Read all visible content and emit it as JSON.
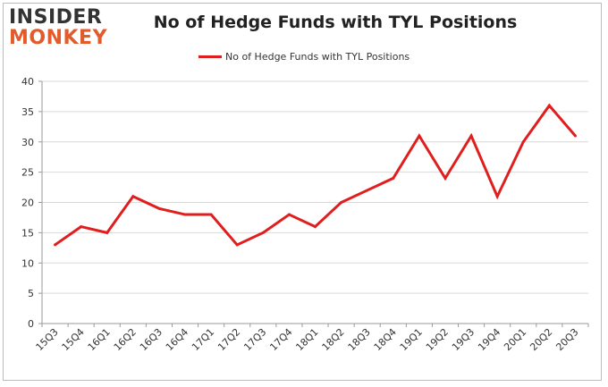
{
  "logo": {
    "line1": "INSIDER",
    "line2": "MONKEY"
  },
  "chart_data": {
    "type": "line",
    "title": "No of Hedge Funds with TYL Positions",
    "xlabel": "",
    "ylabel": "",
    "categories": [
      "15Q3",
      "15Q4",
      "16Q1",
      "16Q2",
      "16Q3",
      "16Q4",
      "17Q1",
      "17Q2",
      "17Q3",
      "17Q4",
      "18Q1",
      "18Q2",
      "18Q3",
      "18Q4",
      "19Q1",
      "19Q2",
      "19Q3",
      "19Q4",
      "20Q1",
      "20Q2",
      "20Q3"
    ],
    "series": [
      {
        "name": "No of Hedge Funds with TYL Positions",
        "values": [
          13,
          16,
          15,
          21,
          19,
          18,
          18,
          13,
          15,
          18,
          16,
          20,
          22,
          24,
          31,
          24,
          31,
          21,
          30,
          36,
          31
        ]
      }
    ],
    "ylim": [
      0,
      40
    ],
    "yticks": [
      0,
      5,
      10,
      15,
      20,
      25,
      30,
      35,
      40
    ],
    "grid": true,
    "legend_position": "top-center",
    "line_color": "#e01e1e"
  }
}
